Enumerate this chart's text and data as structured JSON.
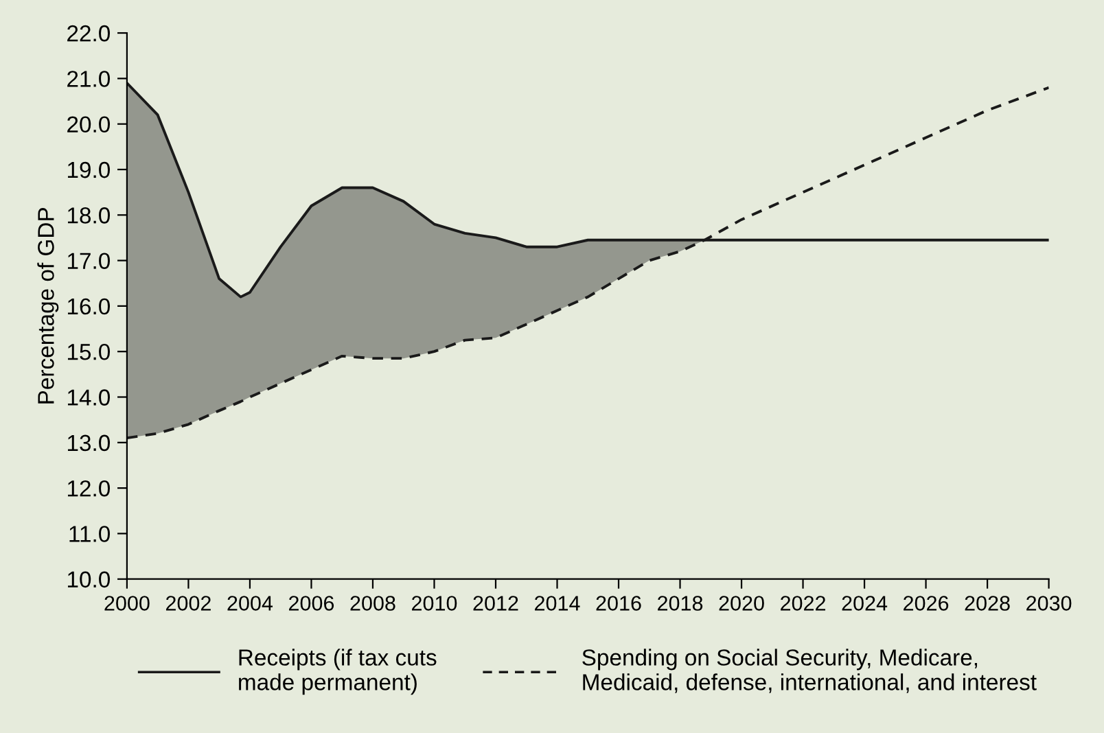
{
  "chart_data": {
    "type": "line",
    "ylabel": "Percentage of GDP",
    "x": [
      2000,
      2001,
      2002,
      2003,
      2003.7,
      2004,
      2005,
      2006,
      2007,
      2008,
      2009,
      2010,
      2011,
      2012,
      2013,
      2014,
      2015,
      2016,
      2017,
      2018,
      2018.8,
      2020,
      2022,
      2024,
      2026,
      2028,
      2030
    ],
    "series": [
      {
        "name": "Receipts (if tax cuts made permanent)",
        "color": "#1a1a1a",
        "line_style": "solid",
        "values": [
          20.9,
          20.2,
          18.5,
          16.6,
          16.2,
          16.3,
          17.3,
          18.2,
          18.6,
          18.6,
          18.3,
          17.8,
          17.6,
          17.5,
          17.3,
          17.3,
          17.45,
          17.45,
          17.45,
          17.45,
          17.45,
          17.45,
          17.45,
          17.45,
          17.45,
          17.45,
          17.45
        ],
        "lower": [
          13.1,
          13.2,
          13.4,
          13.7,
          13.9,
          14.0,
          14.3,
          14.6,
          14.9,
          14.85,
          14.85,
          15.0,
          15.25,
          15.3,
          15.6,
          15.9,
          16.2,
          16.6,
          17.0,
          17.2,
          17.45,
          null,
          null,
          null,
          null,
          null,
          null
        ],
        "upper": [
          20.9,
          20.2,
          18.5,
          16.6,
          16.2,
          16.3,
          17.3,
          18.2,
          18.6,
          18.6,
          18.3,
          17.8,
          17.6,
          17.5,
          17.3,
          17.3,
          17.45,
          17.45,
          17.45,
          17.45,
          17.45,
          null,
          null,
          null,
          null,
          null,
          null
        ]
      },
      {
        "name": "Spending on Social Security, Medicare, Medicaid, defense, international, and interest",
        "color": "#1a1a1a",
        "line_style": "dashed",
        "values": [
          13.1,
          13.2,
          13.4,
          13.7,
          13.9,
          14.0,
          14.3,
          14.6,
          14.9,
          14.85,
          14.85,
          15.0,
          15.25,
          15.3,
          15.6,
          15.9,
          16.2,
          16.6,
          17.0,
          17.2,
          17.45,
          17.9,
          18.5,
          19.1,
          19.7,
          20.3,
          20.8
        ]
      }
    ],
    "xlim": [
      2000,
      2030
    ],
    "xticks": [
      2000,
      2002,
      2004,
      2006,
      2008,
      2010,
      2012,
      2014,
      2016,
      2018,
      2020,
      2022,
      2024,
      2026,
      2028,
      2030
    ],
    "ylim": [
      10,
      22
    ],
    "yticks": [
      {
        "value": 10,
        "label": "10.0"
      },
      {
        "value": 11,
        "label": "11.0"
      },
      {
        "value": 12,
        "label": "12.0"
      },
      {
        "value": 13,
        "label": "13.0"
      },
      {
        "value": 14,
        "label": "14.0"
      },
      {
        "value": 15,
        "label": "15.0"
      },
      {
        "value": 16,
        "label": "16.0"
      },
      {
        "value": 17,
        "label": "17.0"
      },
      {
        "value": 18,
        "label": "18.0"
      },
      {
        "value": 19,
        "label": "19.0"
      },
      {
        "value": 20,
        "label": "20.0"
      },
      {
        "value": 21,
        "label": "21.0"
      },
      {
        "value": 22,
        "label": "22.0"
      }
    ],
    "grid": false,
    "legend": "bottom"
  }
}
